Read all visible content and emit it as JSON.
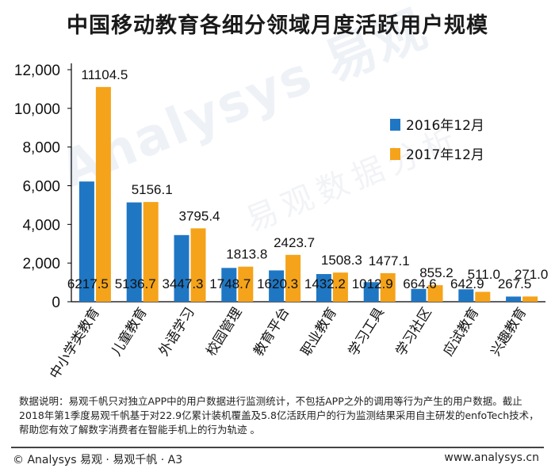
{
  "title": "中国移动教育各细分领域月度活跃用户规模",
  "watermark": {
    "brand": "Analysys 易观",
    "sub": "易观数据分析"
  },
  "colors": {
    "series_2016": "#1f77c4",
    "series_2017": "#f5a31a"
  },
  "chart_data": {
    "type": "bar",
    "title": "中国移动教育各细分领域月度活跃用户规模",
    "xlabel": "",
    "ylabel": "",
    "ylim": [
      0,
      12000
    ],
    "yticks": [
      0,
      2000,
      4000,
      6000,
      8000,
      10000,
      12000
    ],
    "ytick_labels": [
      "0",
      "2,000",
      "4,000",
      "6,000",
      "8,000",
      "10,000",
      "12,000"
    ],
    "grid": false,
    "legend_position": "right",
    "categories": [
      "中小学类教育",
      "儿童教育",
      "外语学习",
      "校园管理",
      "教育平台",
      "职业教育",
      "学习工具",
      "学习社区",
      "应试教育",
      "兴趣教育"
    ],
    "series": [
      {
        "name": "2016年12月",
        "values": [
          6217.5,
          5136.7,
          3447.3,
          1748.7,
          1620.3,
          1432.2,
          1012.9,
          664.6,
          642.9,
          267.5
        ],
        "labels": [
          "6217.5",
          "5136.7",
          "3447.3",
          "1748.7",
          "1620.3",
          "1432.2",
          "1012.9",
          "664.6",
          "642.9",
          "267.5"
        ]
      },
      {
        "name": "2017年12月",
        "values": [
          11104.5,
          5156.1,
          3795.4,
          1813.8,
          2423.7,
          1508.3,
          1477.1,
          855.2,
          511.0,
          271.0
        ],
        "labels": [
          "11104.5",
          "5156.1",
          "3795.4",
          "1813.8",
          "2423.7",
          "1508.3",
          "1477.1",
          "855.2",
          "511.0",
          "271.0"
        ]
      }
    ]
  },
  "note": "数据说明：易观千帆只对独立APP中的用户数据进行监测统计，不包括APP之外的调用等行为产生的用户数据。截止2018年第1季度易观千帆基于对22.9亿累计装机覆盖及5.8亿活跃用户的行为监测结果采用自主研发的enfoTech技术，帮助您有效了解数字消费者在智能手机上的行为轨迹 。",
  "footer": {
    "left": "© Analysys 易观 · 易观千帆 · A3",
    "right": "www.analysys.cn"
  }
}
